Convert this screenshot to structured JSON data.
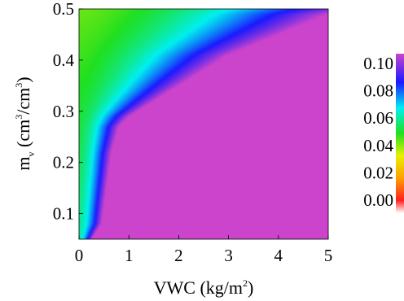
{
  "chart_data": {
    "type": "heatmap",
    "title": "",
    "xlabel": "VWC (kg/m²)",
    "ylabel": "m_v (cm³/cm³)",
    "ylabel_parts": {
      "main": "m",
      "sub": "v",
      "unit_open": " (cm",
      "unit_exp1": "3",
      "unit_mid": "/cm",
      "unit_exp2": "3",
      "unit_close": ")"
    },
    "xlabel_parts": {
      "main": "VWC (kg/m",
      "exp": "2",
      "close": ")"
    },
    "xlim": [
      0,
      5
    ],
    "ylim": [
      0.05,
      0.5
    ],
    "xticks": [
      "0",
      "1",
      "2",
      "3",
      "4",
      "5"
    ],
    "yticks": [
      "0.1",
      "0.2",
      "0.3",
      "0.4",
      "0.5"
    ],
    "colorbar": {
      "range": [
        0,
        0.1
      ],
      "ticks": [
        "0.10",
        "0.08",
        "0.06",
        "0.04",
        "0.02",
        "0.00"
      ],
      "colors": [
        "#ffffff",
        "#ff0000",
        "#ffa500",
        "#ffff00",
        "#00ff00",
        "#00ffff",
        "#0000ff",
        "#cc44cc"
      ]
    },
    "saturation_boundary": {
      "description": "Estimated contour where value reaches 0.10 (magenta region to the right/below)",
      "vwc": [
        0.25,
        0.45,
        0.55,
        0.65,
        0.8,
        1.0,
        1.5,
        2.0,
        2.5,
        3.0,
        3.5,
        4.0,
        4.5,
        5.0
      ],
      "mv": [
        0.05,
        0.08,
        0.15,
        0.22,
        0.27,
        0.29,
        0.32,
        0.35,
        0.38,
        0.41,
        0.43,
        0.45,
        0.47,
        0.49
      ]
    },
    "corner_values": {
      "top_left": 0.045,
      "bottom_left": 0.06
    }
  }
}
